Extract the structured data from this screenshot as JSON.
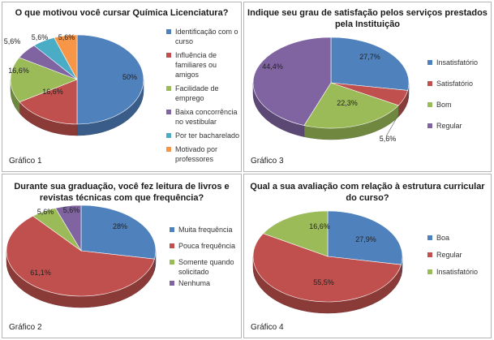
{
  "chart_data": [
    {
      "type": "pie",
      "panel": "p1",
      "title": "O que motivou você cursar Química Licenciatura?",
      "figure_label": "Gráfico 1",
      "categories": [
        "Identificação com o curso",
        "Influência de familiares ou amigos",
        "Facilidade de emprego",
        "Baixa concorrência no vestibular",
        "Por ter bacharelado",
        "Motivado por professores"
      ],
      "values": [
        50,
        16.6,
        16.6,
        5.6,
        5.6,
        5.6
      ],
      "labels": [
        "50%",
        "16,6%",
        "16,6%",
        "5,6%",
        "5,6%",
        "5,6%"
      ],
      "colors": [
        "#4f81bd",
        "#c0504d",
        "#9bbb59",
        "#8064a2",
        "#4bacc6",
        "#f79646"
      ],
      "legend_position": "right"
    },
    {
      "type": "pie",
      "panel": "p3",
      "title": "Indique seu grau de satisfação pelos serviços prestados pela Instituição",
      "figure_label": "Gráfico 3",
      "categories": [
        "Insatisfatório",
        "Satisfatório",
        "Bom",
        "Regular"
      ],
      "values": [
        27.7,
        5.6,
        22.3,
        44.4
      ],
      "labels": [
        "27,7%",
        "5,6%",
        "22,3%",
        "44,4%"
      ],
      "colors": [
        "#4f81bd",
        "#c0504d",
        "#9bbb59",
        "#8064a2"
      ],
      "legend_position": "right"
    },
    {
      "type": "pie",
      "panel": "p2",
      "title": "Durante sua graduação, você fez leitura de livros e revistas técnicas com que frequência?",
      "figure_label": "Gráfico 2",
      "categories": [
        "Muita frequência",
        "Pouca frequência",
        "Somente quando solicitado",
        "Nenhuma"
      ],
      "values": [
        28,
        61.1,
        5.6,
        5.6
      ],
      "labels": [
        "28%",
        "61,1%",
        "5,6%",
        "5,6%"
      ],
      "colors": [
        "#4f81bd",
        "#c0504d",
        "#9bbb59",
        "#8064a2"
      ],
      "legend_position": "right"
    },
    {
      "type": "pie",
      "panel": "p4",
      "title": "Qual a sua avaliação com relação à estrutura curricular do curso?",
      "figure_label": "Gráfico 4",
      "categories": [
        "Boa",
        "Regular",
        "Insatisfatório"
      ],
      "values": [
        27.9,
        55.5,
        16.6
      ],
      "labels": [
        "27,9%",
        "55,5%",
        "16,6%"
      ],
      "colors": [
        "#4f81bd",
        "#c0504d",
        "#9bbb59"
      ],
      "legend_position": "right"
    }
  ]
}
